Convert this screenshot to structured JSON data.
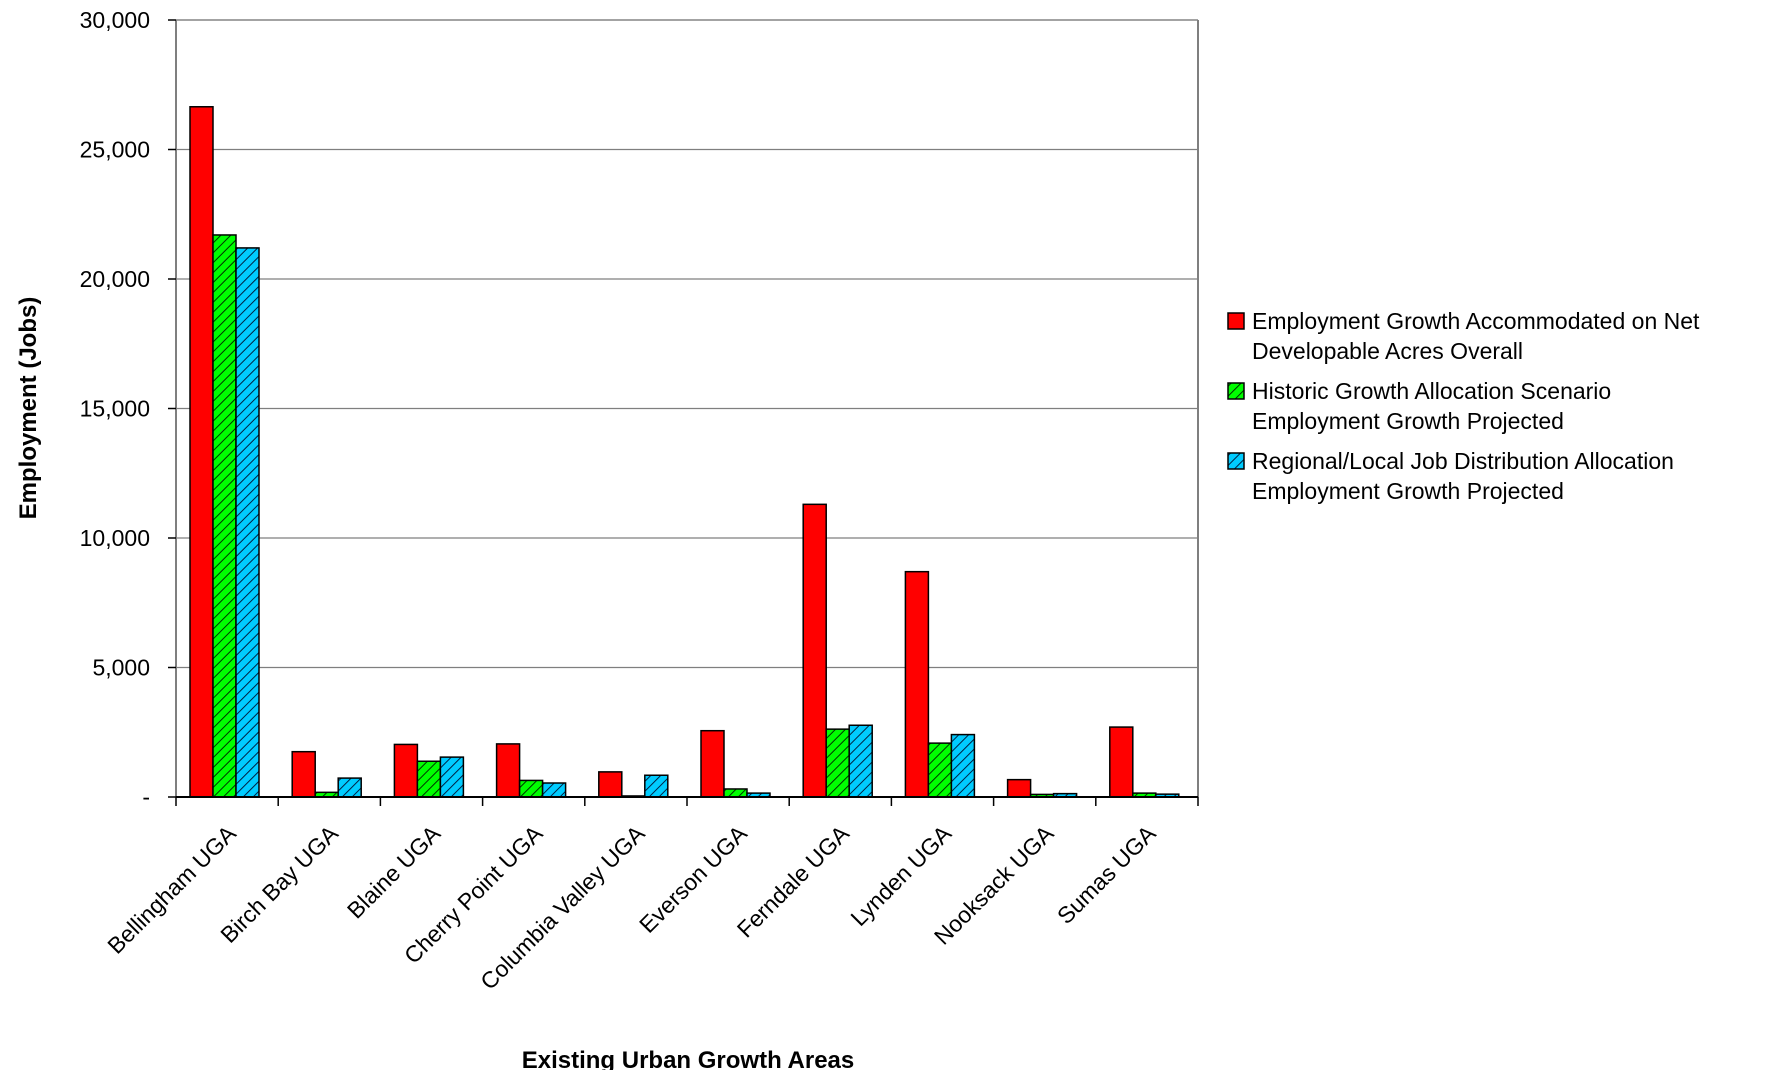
{
  "chart_data": {
    "type": "bar",
    "title": "",
    "xlabel": "Existing Urban Growth Areas",
    "ylabel": "Employment (Jobs)",
    "ylim": [
      0,
      30000
    ],
    "yticks": [
      0,
      5000,
      10000,
      15000,
      20000,
      25000,
      30000
    ],
    "ytick_labels": [
      "-",
      "5,000",
      "10,000",
      "15,000",
      "20,000",
      "25,000",
      "30,000"
    ],
    "grid": true,
    "legend_position": "right",
    "categories": [
      "Bellingham UGA",
      "Birch Bay UGA",
      "Blaine UGA",
      "Cherry Point UGA",
      "Columbia Valley UGA",
      "Everson UGA",
      "Ferndale UGA",
      "Lynden UGA",
      "Nooksack UGA",
      "Sumas UGA"
    ],
    "series": [
      {
        "name_lines": [
          "Employment Growth Accommodated on Net",
          "Developable Acres Overall"
        ],
        "color": "#ff0000",
        "pattern": "solid",
        "values": [
          26650,
          1750,
          2030,
          2050,
          970,
          2560,
          11300,
          8700,
          670,
          2700
        ]
      },
      {
        "name_lines": [
          "Historic Growth Allocation Scenario",
          "Employment Growth Projected"
        ],
        "color": "#00ff00",
        "pattern": "hatch",
        "values": [
          21700,
          180,
          1380,
          640,
          40,
          310,
          2620,
          2080,
          100,
          150
        ]
      },
      {
        "name_lines": [
          "Regional/Local Job Distribution Allocation",
          "Employment Growth Projected"
        ],
        "color": "#00ccff",
        "pattern": "hatch",
        "values": [
          21200,
          730,
          1540,
          540,
          840,
          150,
          2770,
          2410,
          130,
          110
        ]
      }
    ]
  }
}
